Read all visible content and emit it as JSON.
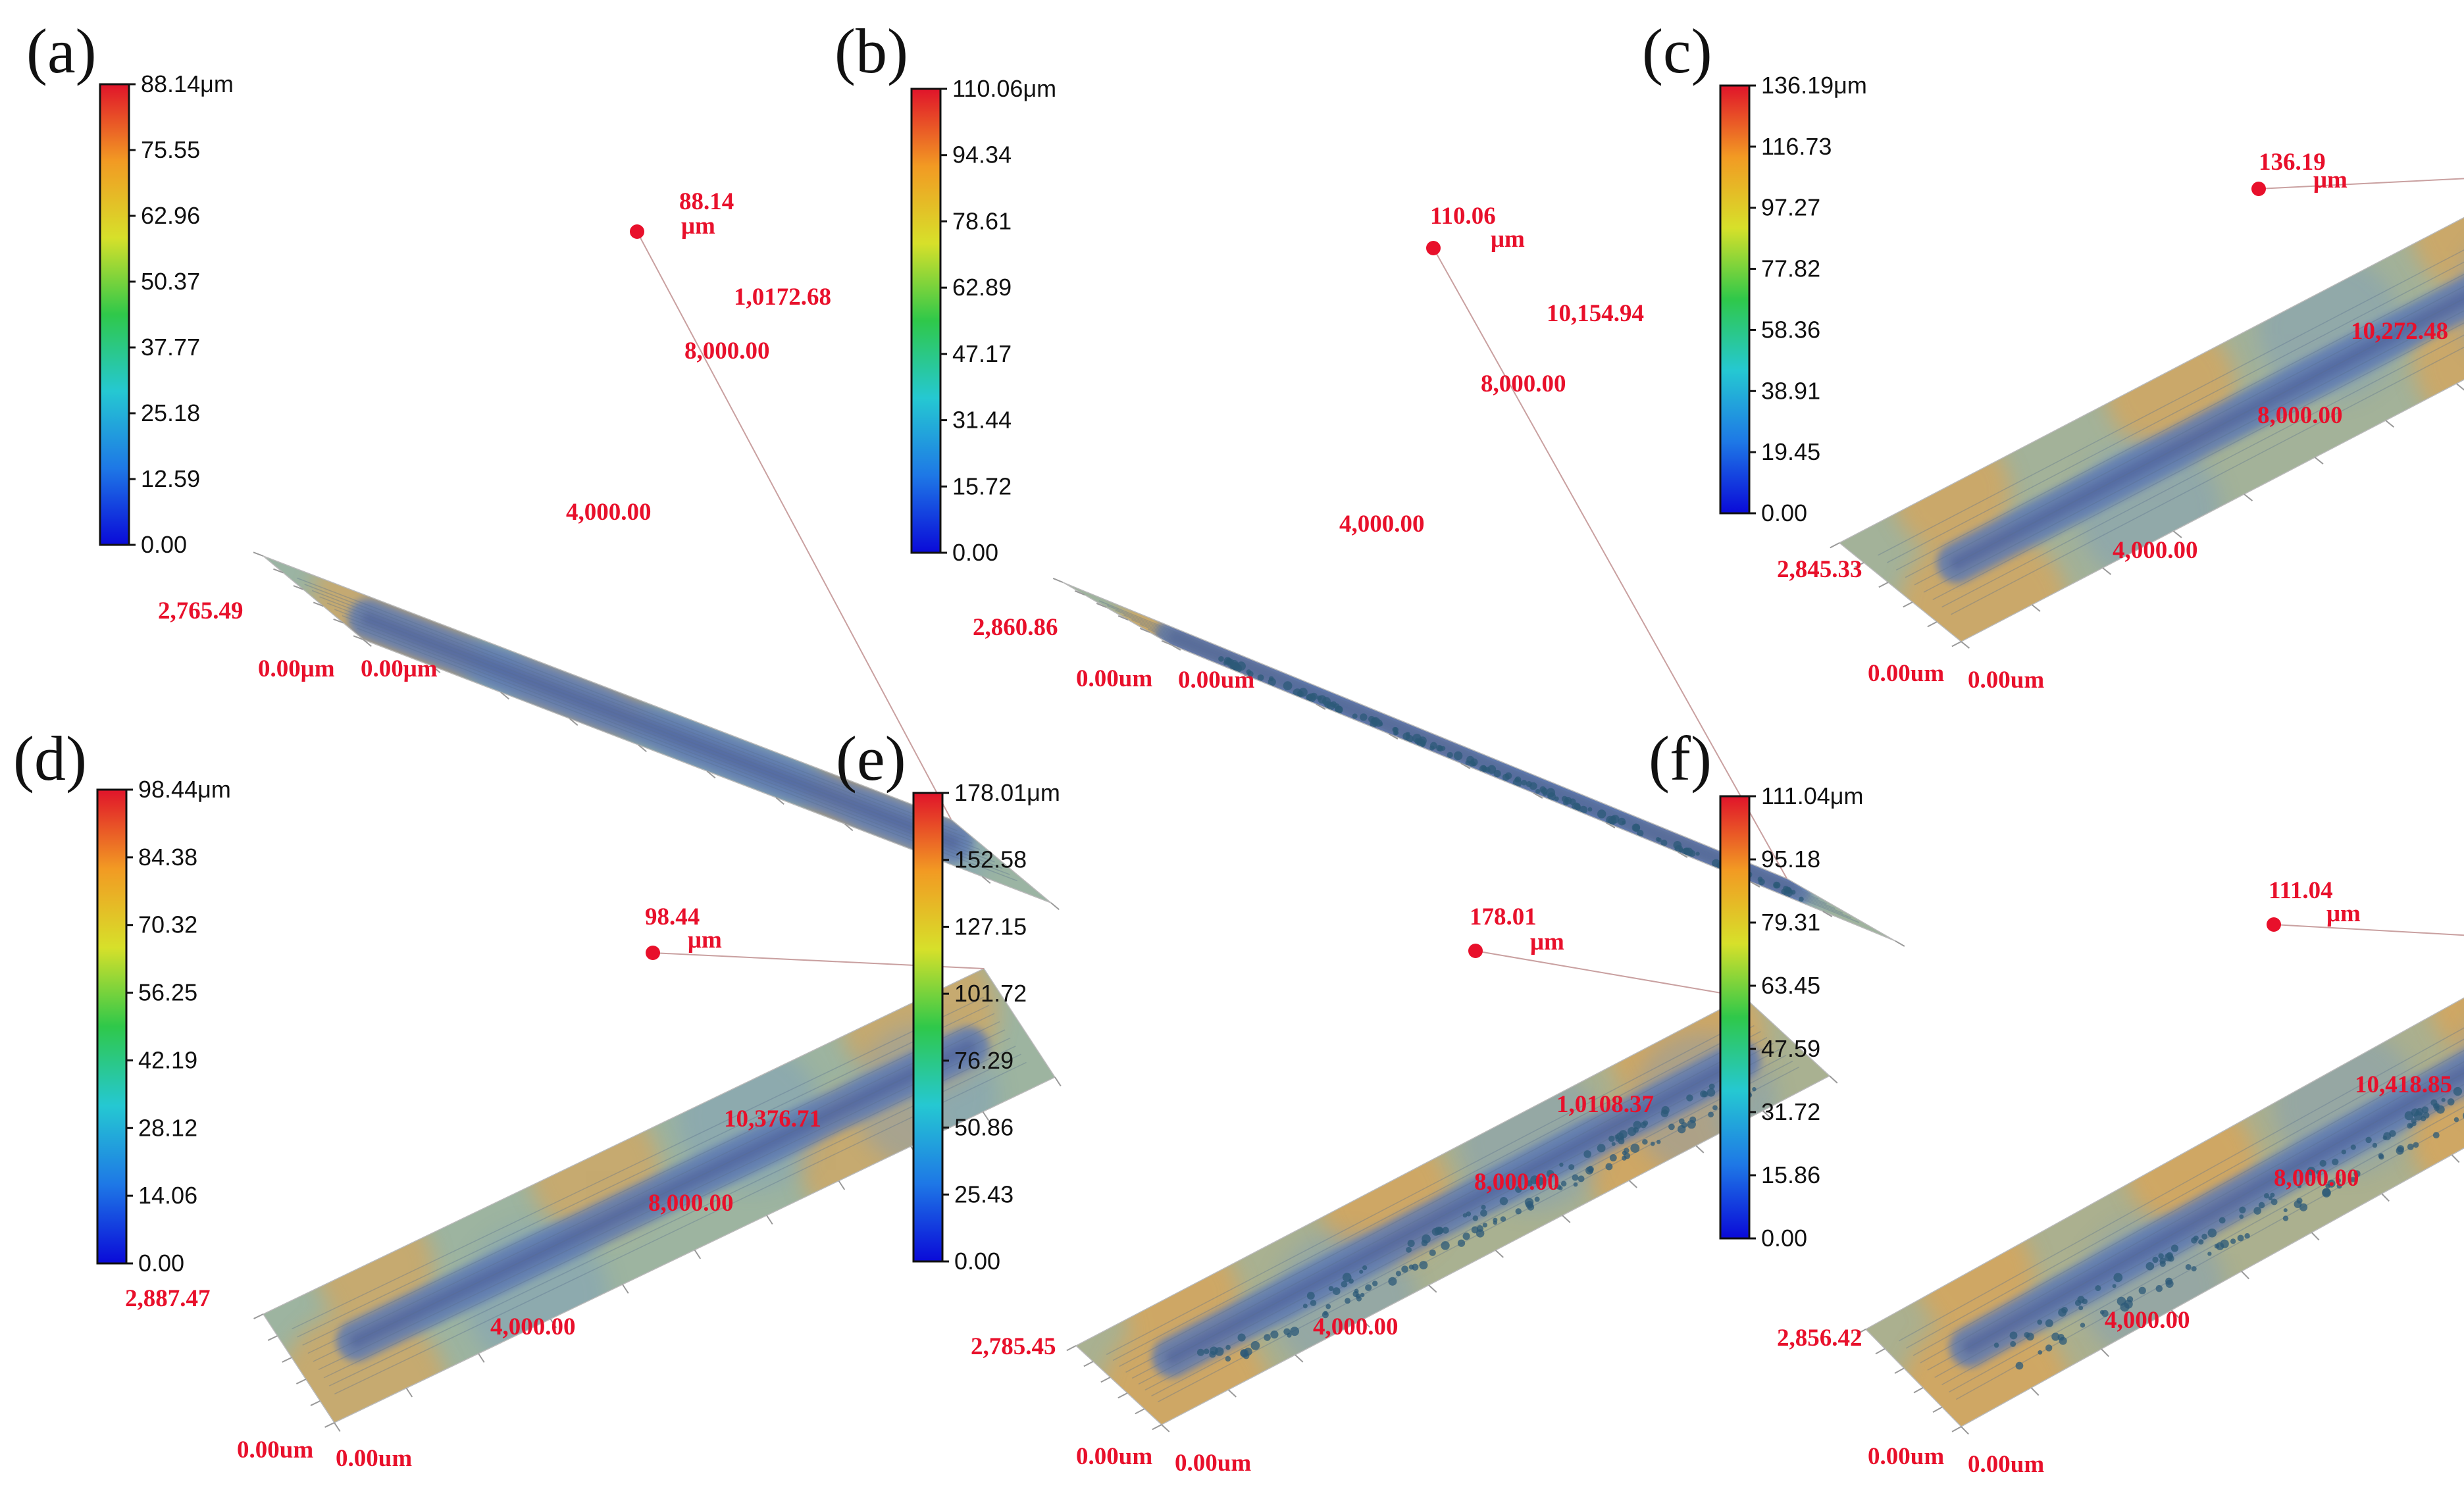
{
  "colors": {
    "red_label": "#e8102b",
    "colorbar_stops": [
      "#0a0ad8",
      "#1e78e6",
      "#25c8d2",
      "#2fc84a",
      "#d7e02a",
      "#f29a23",
      "#e0142a"
    ],
    "surface_base": "#8cb8b4",
    "surface_track": "#5e7ab2",
    "surface_warm": "#d8a55a"
  },
  "panels": [
    {
      "label": "(a)",
      "colorbar_ticks": [
        "88.14μm",
        "75.55",
        "62.96",
        "50.37",
        "37.77",
        "25.18",
        "12.59",
        "0.00"
      ],
      "max_value": "88.14",
      "max_unit": "μm",
      "length_end": "1,0172.68",
      "length_mid_1": "8,000.00",
      "length_mid_2": "4,000.00",
      "width_end": "2,765.49",
      "origin_width": "0.00μm",
      "origin_length": "0.00μm",
      "surface": {
        "warmth": 0.35,
        "speckle": false
      }
    },
    {
      "label": "(b)",
      "colorbar_ticks": [
        "110.06μm",
        "94.34",
        "78.61",
        "62.89",
        "47.17",
        "31.44",
        "15.72",
        "0.00"
      ],
      "max_value": "110.06",
      "max_unit": "μm",
      "length_end": "10,154.94",
      "length_mid_1": "8,000.00",
      "length_mid_2": "4,000.00",
      "width_end": "2,860.86",
      "origin_width": "0.00um",
      "origin_length": "0.00um",
      "surface": {
        "warmth": 0.45,
        "speckle": true
      }
    },
    {
      "label": "(c)",
      "colorbar_ticks": [
        "136.19μm",
        "116.73",
        "97.27",
        "77.82",
        "58.36",
        "38.91",
        "19.45",
        "0.00"
      ],
      "max_value": "136.19",
      "max_unit": "μm",
      "length_end": "10,272.48",
      "length_mid_1": "8,000.00",
      "length_mid_2": "4,000.00",
      "width_end": "2,845.33",
      "origin_width": "0.00um",
      "origin_length": "0.00um",
      "surface": {
        "warmth": 0.55,
        "speckle": false
      }
    },
    {
      "label": "(d)",
      "colorbar_ticks": [
        "98.44μm",
        "84.38",
        "70.32",
        "56.25",
        "42.19",
        "28.12",
        "14.06",
        "0.00"
      ],
      "max_value": "98.44",
      "max_unit": "μm",
      "length_end": "10,376.71",
      "length_mid_1": "8,000.00",
      "length_mid_2": "4,000.00",
      "width_end": "2,887.47",
      "origin_width": "0.00um",
      "origin_length": "0.00um",
      "surface": {
        "warmth": 0.4,
        "speckle": false
      }
    },
    {
      "label": "(e)",
      "colorbar_ticks": [
        "178.01μm",
        "152.58",
        "127.15",
        "101.72",
        "76.29",
        "50.86",
        "25.43",
        "0.00"
      ],
      "max_value": "178.01",
      "max_unit": "μm",
      "length_end": "1,0108.37",
      "length_mid_1": "8,000.00",
      "length_mid_2": "4,000.00",
      "width_end": "2,785.45",
      "origin_width": "0.00um",
      "origin_length": "0.00um",
      "surface": {
        "warmth": 0.7,
        "speckle": true
      }
    },
    {
      "label": "(f)",
      "colorbar_ticks": [
        "111.04μm",
        "95.18",
        "79.31",
        "63.45",
        "47.59",
        "31.72",
        "15.86",
        "0.00"
      ],
      "max_value": "111.04",
      "max_unit": "μm",
      "length_end": "10,418.85",
      "length_mid_1": "8,000.00",
      "length_mid_2": "4,000.00",
      "width_end": "2,856.42",
      "origin_width": "0.00um",
      "origin_length": "0.00um",
      "surface": {
        "warmth": 0.75,
        "speckle": true
      }
    }
  ]
}
